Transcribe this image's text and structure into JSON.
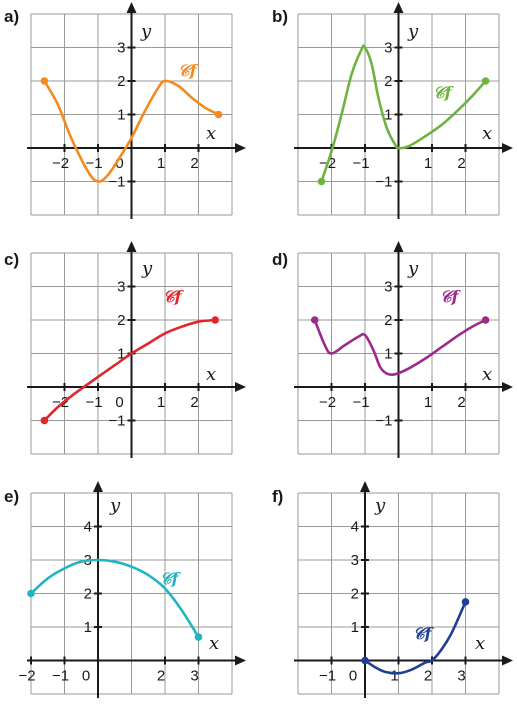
{
  "chart_data": [
    {
      "panel": "a)",
      "type": "line",
      "color": "#f28a1e",
      "curve_label": "𝒞f",
      "x_axis_label": "x",
      "y_axis_label": "y",
      "xlim": [
        -3,
        3
      ],
      "ylim": [
        -2,
        4
      ],
      "x_ticks": [
        -2,
        -1,
        0,
        1,
        2
      ],
      "y_ticks": [
        -1,
        1,
        2,
        3
      ],
      "points": [
        [
          -2.6,
          2
        ],
        [
          -2.2,
          1.3
        ],
        [
          -1.8,
          0.3
        ],
        [
          -1.3,
          -0.7
        ],
        [
          -1,
          -1
        ],
        [
          -0.7,
          -0.8
        ],
        [
          -0.3,
          -0.2
        ],
        [
          0,
          0.3
        ],
        [
          0.4,
          1.1
        ],
        [
          0.8,
          1.8
        ],
        [
          1,
          2
        ],
        [
          1.4,
          1.85
        ],
        [
          1.8,
          1.5
        ],
        [
          2.2,
          1.2
        ],
        [
          2.6,
          1
        ]
      ],
      "endpoints": [
        [
          -2.6,
          2
        ],
        [
          2.6,
          1
        ]
      ]
    },
    {
      "panel": "b)",
      "type": "line",
      "color": "#6cb33f",
      "curve_label": "𝒞f",
      "x_axis_label": "x",
      "y_axis_label": "y",
      "xlim": [
        -3,
        3
      ],
      "ylim": [
        -2,
        4
      ],
      "x_ticks": [
        -2,
        -1,
        1,
        2
      ],
      "y_ticks": [
        -1,
        1,
        2,
        3
      ],
      "points": [
        [
          -2.3,
          -1
        ],
        [
          -2,
          -0.1
        ],
        [
          -1.7,
          1
        ],
        [
          -1.4,
          2.2
        ],
        [
          -1.1,
          2.95
        ],
        [
          -1,
          3
        ],
        [
          -0.8,
          2.5
        ],
        [
          -0.6,
          1.5
        ],
        [
          -0.35,
          0.6
        ],
        [
          -0.1,
          0.1
        ],
        [
          0,
          0
        ],
        [
          0.3,
          0.05
        ],
        [
          0.8,
          0.35
        ],
        [
          1.3,
          0.7
        ],
        [
          1.8,
          1.15
        ],
        [
          2.2,
          1.55
        ],
        [
          2.6,
          2
        ]
      ],
      "endpoints": [
        [
          -2.3,
          -1
        ],
        [
          2.6,
          2
        ]
      ]
    },
    {
      "panel": "c)",
      "type": "line",
      "color": "#e0252b",
      "curve_label": "𝒞f",
      "x_axis_label": "x",
      "y_axis_label": "y",
      "xlim": [
        -3,
        3
      ],
      "ylim": [
        -2,
        4
      ],
      "x_ticks": [
        -2,
        -1,
        0,
        1,
        2
      ],
      "y_ticks": [
        -1,
        1,
        2,
        3
      ],
      "points": [
        [
          -2.6,
          -1
        ],
        [
          -2.2,
          -0.6
        ],
        [
          -1.7,
          -0.2
        ],
        [
          -1,
          0.3
        ],
        [
          -0.5,
          0.65
        ],
        [
          0,
          1
        ],
        [
          0.5,
          1.3
        ],
        [
          1,
          1.6
        ],
        [
          1.5,
          1.8
        ],
        [
          2,
          1.95
        ],
        [
          2.5,
          2
        ]
      ],
      "endpoints": [
        [
          -2.6,
          -1
        ],
        [
          2.5,
          2
        ]
      ]
    },
    {
      "panel": "d)",
      "type": "line",
      "color": "#9b2a8a",
      "curve_label": "𝒞f",
      "x_axis_label": "x",
      "y_axis_label": "y",
      "xlim": [
        -3,
        3
      ],
      "ylim": [
        -2,
        4
      ],
      "x_ticks": [
        -2,
        -1,
        1,
        2
      ],
      "y_ticks": [
        -1,
        1,
        2,
        3
      ],
      "points": [
        [
          -2.5,
          2
        ],
        [
          -2.2,
          1.25
        ],
        [
          -2,
          1
        ],
        [
          -1.6,
          1.25
        ],
        [
          -1.2,
          1.5
        ],
        [
          -1,
          1.55
        ],
        [
          -0.75,
          1.1
        ],
        [
          -0.55,
          0.6
        ],
        [
          -0.35,
          0.4
        ],
        [
          -0.1,
          0.38
        ],
        [
          0.3,
          0.55
        ],
        [
          0.8,
          0.85
        ],
        [
          1.3,
          1.2
        ],
        [
          1.8,
          1.55
        ],
        [
          2.2,
          1.8
        ],
        [
          2.6,
          2
        ]
      ],
      "endpoints": [
        [
          -2.5,
          2
        ],
        [
          2.6,
          2
        ]
      ]
    },
    {
      "panel": "e)",
      "type": "line",
      "color": "#1fb5c3",
      "curve_label": "𝒞f",
      "x_axis_label": "x",
      "y_axis_label": "y",
      "xlim": [
        -2,
        4
      ],
      "ylim": [
        -1,
        5
      ],
      "x_ticks": [
        -2,
        -1,
        0,
        2,
        3
      ],
      "y_ticks": [
        1,
        2,
        3,
        4
      ],
      "points": [
        [
          -2,
          2
        ],
        [
          -1.5,
          2.45
        ],
        [
          -1,
          2.75
        ],
        [
          -0.5,
          2.95
        ],
        [
          0,
          3
        ],
        [
          0.5,
          2.95
        ],
        [
          1,
          2.8
        ],
        [
          1.5,
          2.55
        ],
        [
          2,
          2.15
        ],
        [
          2.5,
          1.5
        ],
        [
          3,
          0.7
        ]
      ],
      "endpoints": [
        [
          -2,
          2
        ],
        [
          3,
          0.7
        ]
      ]
    },
    {
      "panel": "f)",
      "type": "line",
      "color": "#1f3f94",
      "curve_label": "𝒞f",
      "x_axis_label": "x",
      "y_axis_label": "y",
      "xlim": [
        -2,
        4
      ],
      "ylim": [
        -1,
        5
      ],
      "x_ticks": [
        -1,
        0,
        1,
        2,
        3
      ],
      "y_ticks": [
        1,
        2,
        3,
        4
      ],
      "points": [
        [
          0,
          0
        ],
        [
          0.3,
          -0.2
        ],
        [
          0.6,
          -0.34
        ],
        [
          1,
          -0.38
        ],
        [
          1.4,
          -0.27
        ],
        [
          1.8,
          -0.06
        ],
        [
          2,
          0
        ],
        [
          2.3,
          0.35
        ],
        [
          2.6,
          0.85
        ],
        [
          3,
          1.75
        ]
      ],
      "endpoints": [
        [
          0,
          0
        ],
        [
          3,
          1.75
        ]
      ]
    }
  ]
}
